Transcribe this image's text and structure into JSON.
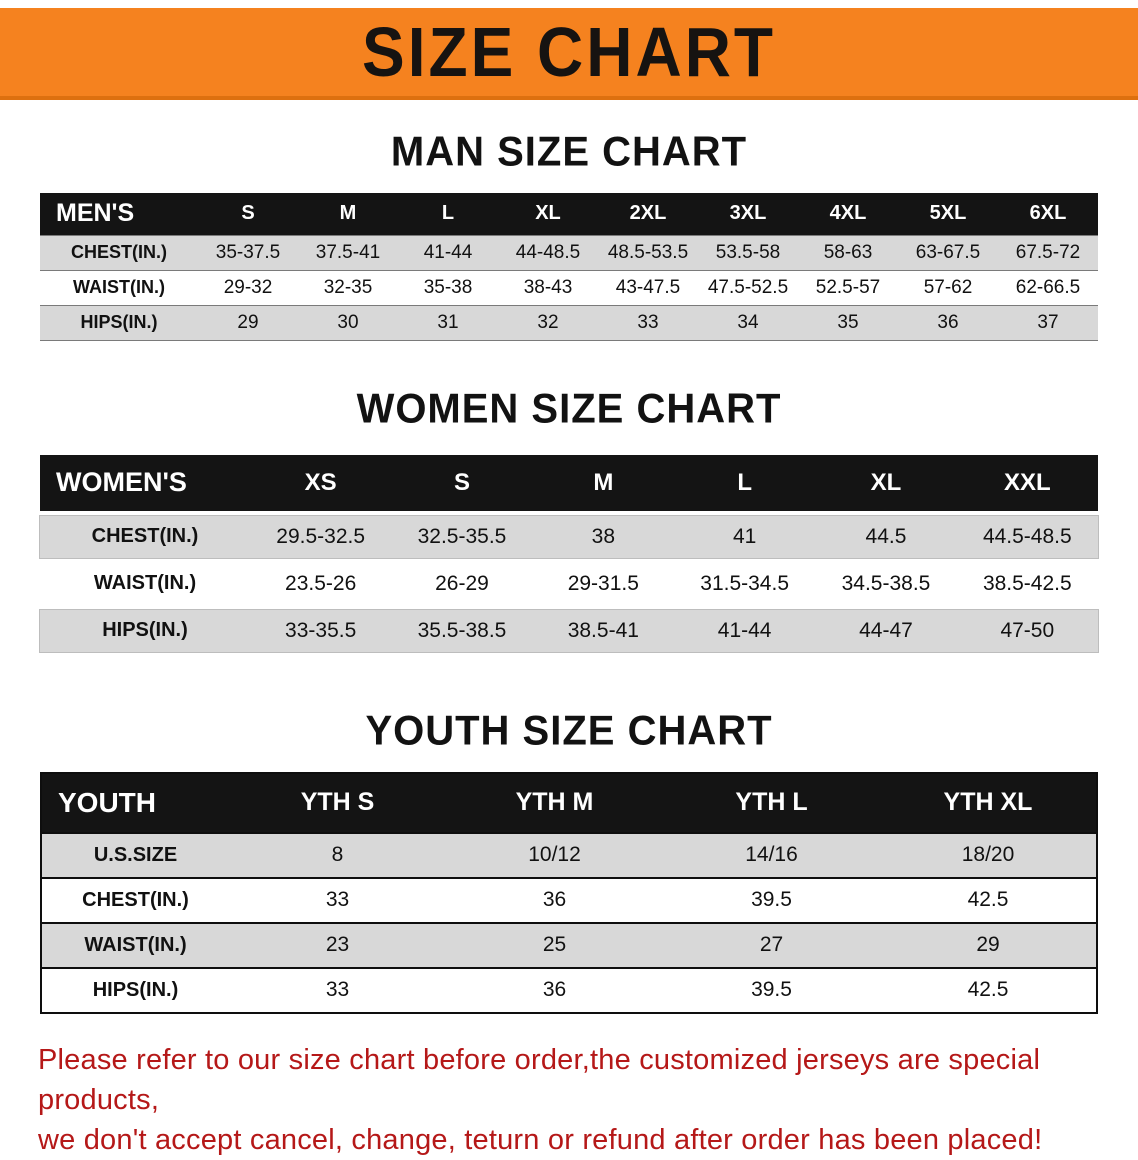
{
  "banner": {
    "title": "SIZE CHART"
  },
  "colors": {
    "banner-bg": "#f5821f",
    "table-header-bg": "#141414",
    "stripe": "#d8d8d8",
    "note-red": "#b51818"
  },
  "sections": [
    {
      "heading": "MAN SIZE CHART",
      "table": {
        "header_label": "MEN'S",
        "columns": [
          "S",
          "M",
          "L",
          "XL",
          "2XL",
          "3XL",
          "4XL",
          "5XL",
          "6XL"
        ],
        "rows": [
          {
            "label": "CHEST(IN.)",
            "values": [
              "35-37.5",
              "37.5-41",
              "41-44",
              "44-48.5",
              "48.5-53.5",
              "53.5-58",
              "58-63",
              "63-67.5",
              "67.5-72"
            ]
          },
          {
            "label": "WAIST(IN.)",
            "values": [
              "29-32",
              "32-35",
              "35-38",
              "38-43",
              "43-47.5",
              "47.5-52.5",
              "52.5-57",
              "57-62",
              "62-66.5"
            ]
          },
          {
            "label": "HIPS(IN.)",
            "values": [
              "29",
              "30",
              "31",
              "32",
              "33",
              "34",
              "35",
              "36",
              "37"
            ]
          }
        ]
      }
    },
    {
      "heading": "WOMEN SIZE CHART",
      "table": {
        "header_label": "WOMEN'S",
        "columns": [
          "XS",
          "S",
          "M",
          "L",
          "XL",
          "XXL"
        ],
        "rows": [
          {
            "label": "CHEST(IN.)",
            "values": [
              "29.5-32.5",
              "32.5-35.5",
              "38",
              "41",
              "44.5",
              "44.5-48.5"
            ]
          },
          {
            "label": "WAIST(IN.)",
            "values": [
              "23.5-26",
              "26-29",
              "29-31.5",
              "31.5-34.5",
              "34.5-38.5",
              "38.5-42.5"
            ]
          },
          {
            "label": "HIPS(IN.)",
            "values": [
              "33-35.5",
              "35.5-38.5",
              "38.5-41",
              "41-44",
              "44-47",
              "47-50"
            ]
          }
        ]
      }
    },
    {
      "heading": "YOUTH SIZE CHART",
      "table": {
        "header_label": "YOUTH",
        "columns": [
          "YTH S",
          "YTH M",
          "YTH L",
          "YTH XL"
        ],
        "rows": [
          {
            "label": "U.S.SIZE",
            "values": [
              "8",
              "10/12",
              "14/16",
              "18/20"
            ]
          },
          {
            "label": "CHEST(IN.)",
            "values": [
              "33",
              "36",
              "39.5",
              "42.5"
            ]
          },
          {
            "label": "WAIST(IN.)",
            "values": [
              "23",
              "25",
              "27",
              "29"
            ]
          },
          {
            "label": "HIPS(IN.)",
            "values": [
              "33",
              "36",
              "39.5",
              "42.5"
            ]
          }
        ]
      }
    }
  ],
  "footer": {
    "line1": "Please refer to our size chart before order,the customized jerseys are special products,",
    "line2": "we don't accept cancel, change, teturn or refund after order has been placed!"
  }
}
